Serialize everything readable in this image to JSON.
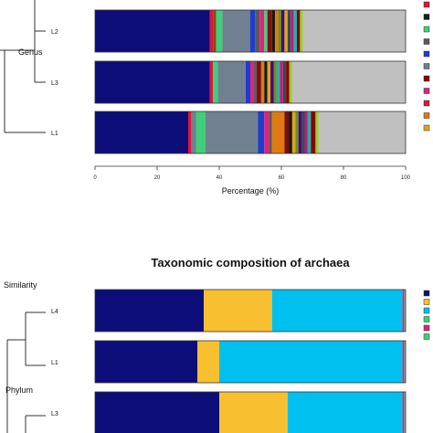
{
  "chart_data": [
    {
      "type": "bar",
      "orientation": "horizontal-stacked",
      "title": "",
      "xlabel": "Percentage (%)",
      "xlim": [
        0,
        100
      ],
      "xticks": [
        "0",
        "20",
        "40",
        "60",
        "80",
        "100"
      ],
      "grouping_label": "Genus",
      "categories": [
        "L2",
        "L3",
        "L1"
      ],
      "bars": [
        {
          "category": "L2",
          "segments": [
            {
              "value": 37,
              "color": "#0d0d7a"
            },
            {
              "value": 1,
              "color": "#dc143c"
            },
            {
              "value": 1,
              "color": "#8b4513"
            },
            {
              "value": 2,
              "color": "#3cd07a"
            },
            {
              "value": 9,
              "color": "#708090"
            },
            {
              "value": 1.5,
              "color": "#1e3cd0"
            },
            {
              "value": 1.5,
              "color": "#5a5a5a"
            },
            {
              "value": 1.5,
              "color": "#e0237a"
            },
            {
              "value": 1,
              "color": "#3cd07a"
            },
            {
              "value": 1.5,
              "color": "#7a1010"
            },
            {
              "value": 1,
              "color": "#1a1a1a"
            },
            {
              "value": 1,
              "color": "#e07a10"
            },
            {
              "value": 1,
              "color": "#6b8e23"
            },
            {
              "value": 1,
              "color": "#4b0082"
            },
            {
              "value": 1,
              "color": "#daa520"
            },
            {
              "value": 1,
              "color": "#2f4f4f"
            },
            {
              "value": 1,
              "color": "#c71585"
            },
            {
              "value": 1,
              "color": "#20b2aa"
            },
            {
              "value": 1,
              "color": "#8b0000"
            },
            {
              "value": 1,
              "color": "#9acd32"
            },
            {
              "value": 33,
              "color": "#c0c0c0"
            }
          ]
        },
        {
          "category": "L3",
          "segments": [
            {
              "value": 37,
              "color": "#0d0d7a"
            },
            {
              "value": 1,
              "color": "#dc143c"
            },
            {
              "value": 1.5,
              "color": "#3cd07a"
            },
            {
              "value": 9,
              "color": "#708090"
            },
            {
              "value": 1.5,
              "color": "#1e3cd0"
            },
            {
              "value": 1,
              "color": "#e0237a"
            },
            {
              "value": 1,
              "color": "#5a5a5a"
            },
            {
              "value": 1.5,
              "color": "#7a1010"
            },
            {
              "value": 1,
              "color": "#e07a10"
            },
            {
              "value": 1,
              "color": "#1a1a1a"
            },
            {
              "value": 1,
              "color": "#daa520"
            },
            {
              "value": 1,
              "color": "#4b0082"
            },
            {
              "value": 1,
              "color": "#6b8e23"
            },
            {
              "value": 1,
              "color": "#20b2aa"
            },
            {
              "value": 1,
              "color": "#c71585"
            },
            {
              "value": 1,
              "color": "#2f4f4f"
            },
            {
              "value": 1,
              "color": "#8b0000"
            },
            {
              "value": 1,
              "color": "#9acd32"
            },
            {
              "value": 36.5,
              "color": "#c0c0c0"
            }
          ]
        },
        {
          "category": "L1",
          "segments": [
            {
              "value": 30,
              "color": "#0d0d7a"
            },
            {
              "value": 1,
              "color": "#dc143c"
            },
            {
              "value": 1.5,
              "color": "#708090"
            },
            {
              "value": 3,
              "color": "#3cd07a"
            },
            {
              "value": 17,
              "color": "#708090"
            },
            {
              "value": 2,
              "color": "#1e3cd0"
            },
            {
              "value": 1.5,
              "color": "#e0237a"
            },
            {
              "value": 1,
              "color": "#5a5a5a"
            },
            {
              "value": 4,
              "color": "#e07a10"
            },
            {
              "value": 1.5,
              "color": "#7a1010"
            },
            {
              "value": 1,
              "color": "#1a1a1a"
            },
            {
              "value": 1,
              "color": "#daa520"
            },
            {
              "value": 1,
              "color": "#6b8e23"
            },
            {
              "value": 1,
              "color": "#4b0082"
            },
            {
              "value": 1,
              "color": "#2f4f4f"
            },
            {
              "value": 1,
              "color": "#c71585"
            },
            {
              "value": 1,
              "color": "#20b2aa"
            },
            {
              "value": 1.5,
              "color": "#8b0000"
            },
            {
              "value": 1,
              "color": "#9acd32"
            },
            {
              "value": 28,
              "color": "#c0c0c0"
            }
          ]
        }
      ],
      "legend_colors": [
        "#dc143c",
        "#1a1a1a",
        "#3cd07a",
        "#5a5a5a",
        "#1e3cd0",
        "#708090",
        "#8b0000",
        "#e0237a",
        "#dc143c",
        "#e07a10",
        "#daa520"
      ],
      "legend_placement": "right"
    },
    {
      "type": "bar",
      "orientation": "horizontal-stacked",
      "title": "Taxonomic composition of archaea",
      "xlabel": "",
      "xlim": [
        0,
        100
      ],
      "grouping_labels": [
        "Similarity",
        "Phylum"
      ],
      "categories": [
        "L4",
        "L1",
        "L3"
      ],
      "bars": [
        {
          "category": "L4",
          "segments": [
            {
              "value": 35,
              "color": "#0d0d7a"
            },
            {
              "value": 22,
              "color": "#f8c030"
            },
            {
              "value": 42,
              "color": "#00c0f0"
            },
            {
              "value": 0.6,
              "color": "#e0237a"
            },
            {
              "value": 0.4,
              "color": "#3cd07a"
            }
          ]
        },
        {
          "category": "L1",
          "segments": [
            {
              "value": 33,
              "color": "#0d0d7a"
            },
            {
              "value": 7,
              "color": "#f8c030"
            },
            {
              "value": 59,
              "color": "#00c0f0"
            },
            {
              "value": 0.6,
              "color": "#e0237a"
            },
            {
              "value": 0.4,
              "color": "#3cd07a"
            }
          ]
        },
        {
          "category": "L3",
          "segments": [
            {
              "value": 40,
              "color": "#0d0d7a"
            },
            {
              "value": 22,
              "color": "#f8c030"
            },
            {
              "value": 37,
              "color": "#00c0f0"
            },
            {
              "value": 0.6,
              "color": "#e0237a"
            },
            {
              "value": 0.4,
              "color": "#3cd07a"
            }
          ]
        }
      ],
      "legend_colors": [
        "#0d0d7a",
        "#f8c030",
        "#00c0f0",
        "#3cd07a",
        "#e0237a",
        "#3cd07a"
      ],
      "legend_placement": "right"
    }
  ]
}
